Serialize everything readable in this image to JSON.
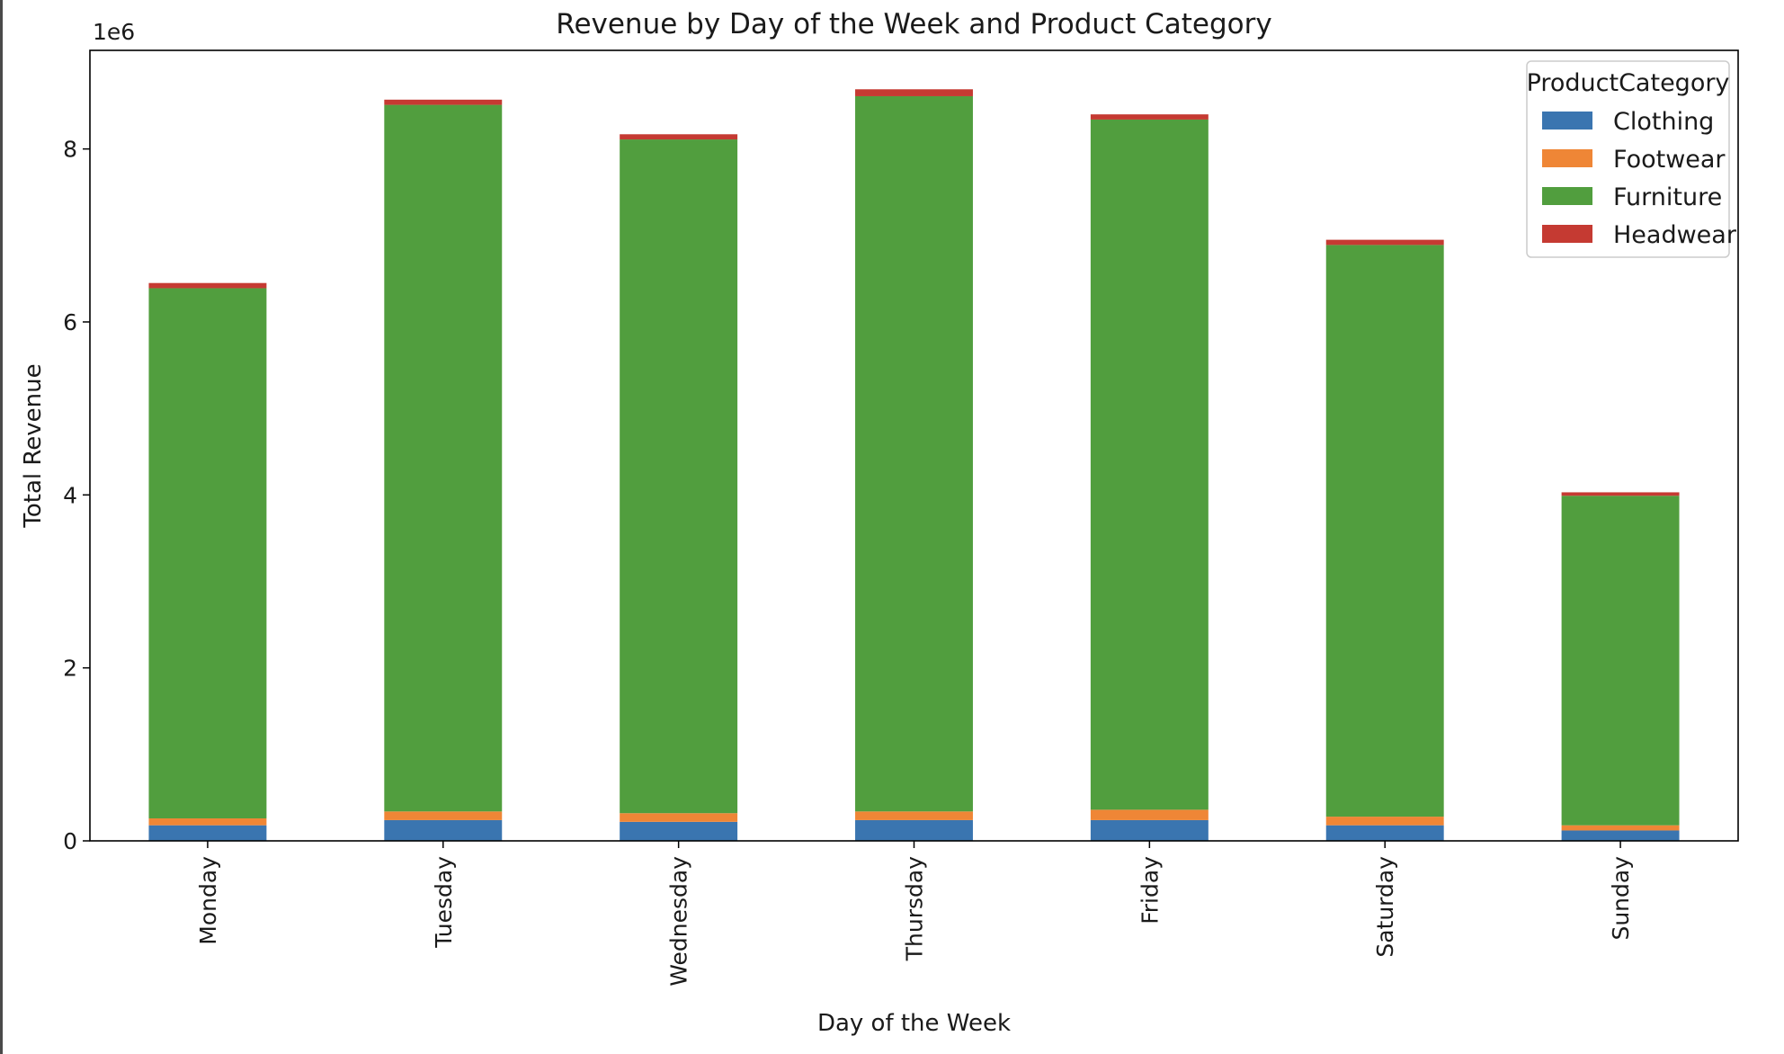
{
  "chart_data": {
    "type": "bar",
    "stacked": true,
    "title": "Revenue by Day of the Week and Product Category",
    "xlabel": "Day of the Week",
    "ylabel": "Total Revenue",
    "y_offset_label": "1e6",
    "ylim": [
      0,
      9140000
    ],
    "y_ticks": [
      0,
      2000000,
      4000000,
      6000000,
      8000000
    ],
    "y_tick_labels": [
      "0",
      "2",
      "4",
      "6",
      "8"
    ],
    "grid": false,
    "categories": [
      "Monday",
      "Tuesday",
      "Wednesday",
      "Thursday",
      "Friday",
      "Saturday",
      "Sunday"
    ],
    "series": [
      {
        "name": "Clothing",
        "color": "#3a75b0",
        "values": [
          180000,
          240000,
          220000,
          240000,
          240000,
          180000,
          120000
        ]
      },
      {
        "name": "Footwear",
        "color": "#ef8636",
        "values": [
          80000,
          100000,
          100000,
          100000,
          120000,
          100000,
          60000
        ]
      },
      {
        "name": "Furniture",
        "color": "#519e3e",
        "values": [
          6130000,
          8170000,
          7790000,
          8270000,
          7980000,
          6610000,
          3810000
        ]
      },
      {
        "name": "Headwear",
        "color": "#c53a32",
        "values": [
          60000,
          60000,
          60000,
          80000,
          60000,
          60000,
          40000
        ]
      }
    ],
    "legend": {
      "title": "ProductCategory",
      "placement": "top-right"
    }
  }
}
